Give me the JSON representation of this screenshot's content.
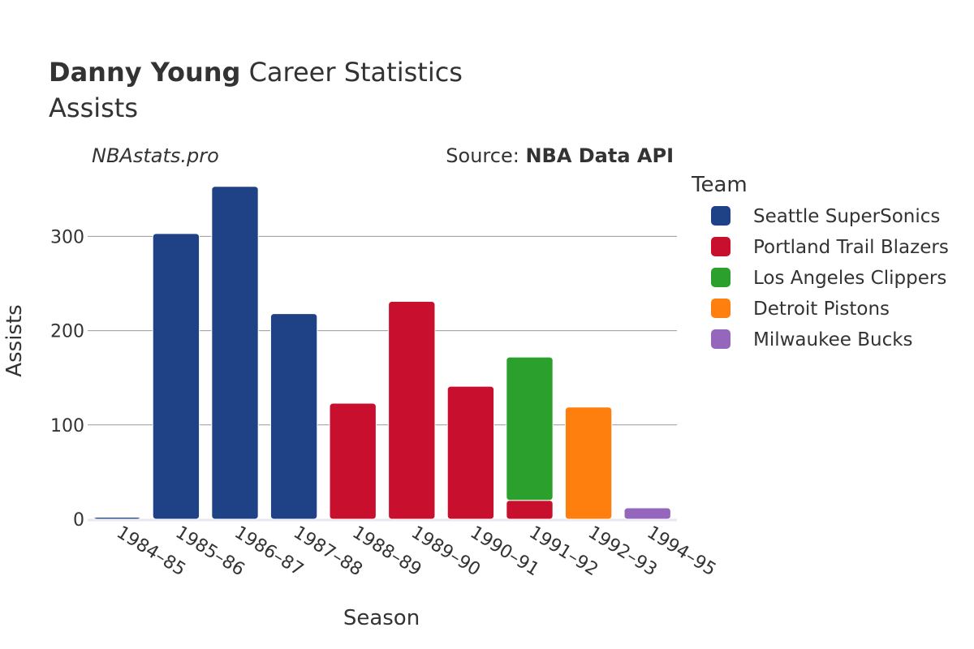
{
  "header": {
    "title_bold": "Danny Young",
    "title_rest": " Career Statistics",
    "subtitle": "Assists",
    "watermark": "NBAstats.pro",
    "source_prefix": "Source: ",
    "source_name": "NBA Data API"
  },
  "legend": {
    "title": "Team"
  },
  "chart_data": {
    "type": "bar",
    "stacked": true,
    "xlabel": "Season",
    "ylabel": "Assists",
    "ylim": [
      0,
      370
    ],
    "yticks": [
      0,
      100,
      200,
      300
    ],
    "grid": true,
    "legend_position": "right",
    "categories": [
      "1984–85",
      "1985–86",
      "1986–87",
      "1987–88",
      "1988–89",
      "1989–90",
      "1990–91",
      "1991–92",
      "1992–93",
      "1994–95"
    ],
    "series": [
      {
        "name": "Seattle SuperSonics",
        "color": "#1f4286",
        "values": [
          2,
          303,
          353,
          218,
          0,
          0,
          0,
          0,
          0,
          0
        ]
      },
      {
        "name": "Portland Trail Blazers",
        "color": "#c8102e",
        "values": [
          0,
          0,
          0,
          0,
          123,
          231,
          141,
          20,
          0,
          0
        ]
      },
      {
        "name": "Los Angeles Clippers",
        "color": "#2ca02c",
        "values": [
          0,
          0,
          0,
          0,
          0,
          0,
          0,
          152,
          0,
          0
        ]
      },
      {
        "name": "Detroit Pistons",
        "color": "#ff7f0e",
        "values": [
          0,
          0,
          0,
          0,
          0,
          0,
          0,
          0,
          119,
          0
        ]
      },
      {
        "name": "Milwaukee Bucks",
        "color": "#9467bd",
        "values": [
          0,
          0,
          0,
          0,
          0,
          0,
          0,
          0,
          0,
          12
        ]
      }
    ]
  }
}
